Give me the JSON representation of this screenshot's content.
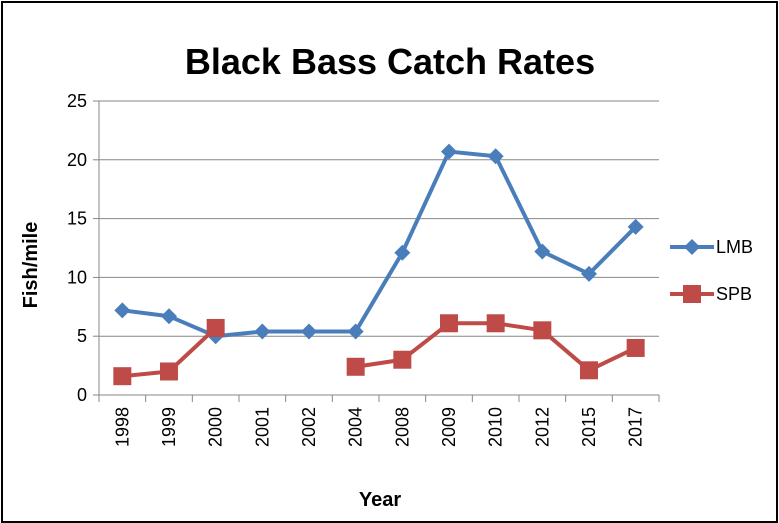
{
  "chart_data": {
    "type": "line",
    "title": "Black Bass Catch Rates",
    "xlabel": "Year",
    "ylabel": "Fish/mile",
    "categories": [
      "1998",
      "1999",
      "2000",
      "2001",
      "2002",
      "2004",
      "2008",
      "2009",
      "2010",
      "2012",
      "2015",
      "2017"
    ],
    "ylim": [
      0,
      25
    ],
    "yticks": [
      0,
      5,
      10,
      15,
      20,
      25
    ],
    "grid": true,
    "legend": "right",
    "series": [
      {
        "name": "LMB",
        "color": "#4a7ebb",
        "marker": "diamond",
        "values": [
          7.2,
          6.7,
          5.0,
          5.4,
          5.4,
          5.4,
          12.1,
          20.7,
          20.3,
          12.2,
          10.3,
          14.3
        ]
      },
      {
        "name": "SPB",
        "color": "#be4b48",
        "marker": "square",
        "values": [
          1.6,
          2.0,
          5.7,
          null,
          null,
          2.4,
          3.0,
          6.1,
          6.1,
          5.5,
          2.1,
          4.0
        ]
      }
    ]
  }
}
